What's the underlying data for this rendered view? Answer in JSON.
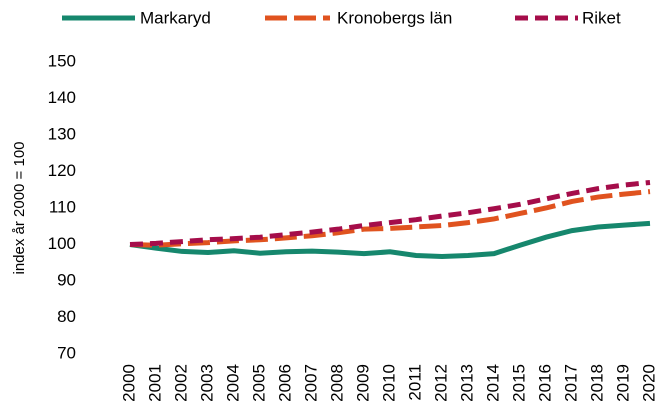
{
  "chart_data": {
    "type": "line",
    "y_label": "index år 2000 = 100",
    "x": [
      "2000",
      "2001",
      "2002",
      "2003",
      "2004",
      "2005",
      "2006",
      "2007",
      "2008",
      "2009",
      "2010",
      "2011",
      "2012",
      "2013",
      "2014",
      "2015",
      "2016",
      "2017",
      "2018",
      "2019",
      "2020"
    ],
    "series": [
      {
        "name": "Markaryd",
        "color": "#16876d",
        "line_style": "solid",
        "values": [
          100,
          99,
          98.1,
          97.8,
          98.3,
          97.6,
          98,
          98.2,
          97.9,
          97.5,
          98,
          97,
          96.7,
          97,
          97.5,
          99.8,
          102,
          103.8,
          104.8,
          105.3,
          105.8
        ]
      },
      {
        "name": "Kronobergs län",
        "color": "#e0531f",
        "line_style": "long-dash",
        "values": [
          100,
          99.8,
          100.2,
          100.5,
          101,
          101.3,
          101.8,
          102.4,
          103.2,
          104.2,
          104.4,
          104.8,
          105.2,
          106,
          107,
          108.5,
          110,
          111.8,
          113,
          113.8,
          114.5
        ]
      },
      {
        "name": "Riket",
        "color": "#a50d4a",
        "line_style": "dash",
        "values": [
          100,
          100.3,
          100.8,
          101.3,
          101.6,
          102,
          102.7,
          103.4,
          104.2,
          105.2,
          106,
          106.8,
          107.8,
          108.7,
          109.8,
          111,
          112.5,
          114,
          115.3,
          116.3,
          117
        ]
      }
    ],
    "ylim": [
      70,
      150
    ],
    "yticks": [
      70,
      80,
      90,
      100,
      110,
      120,
      130,
      140,
      150
    ],
    "grid": false,
    "legend": "top"
  }
}
